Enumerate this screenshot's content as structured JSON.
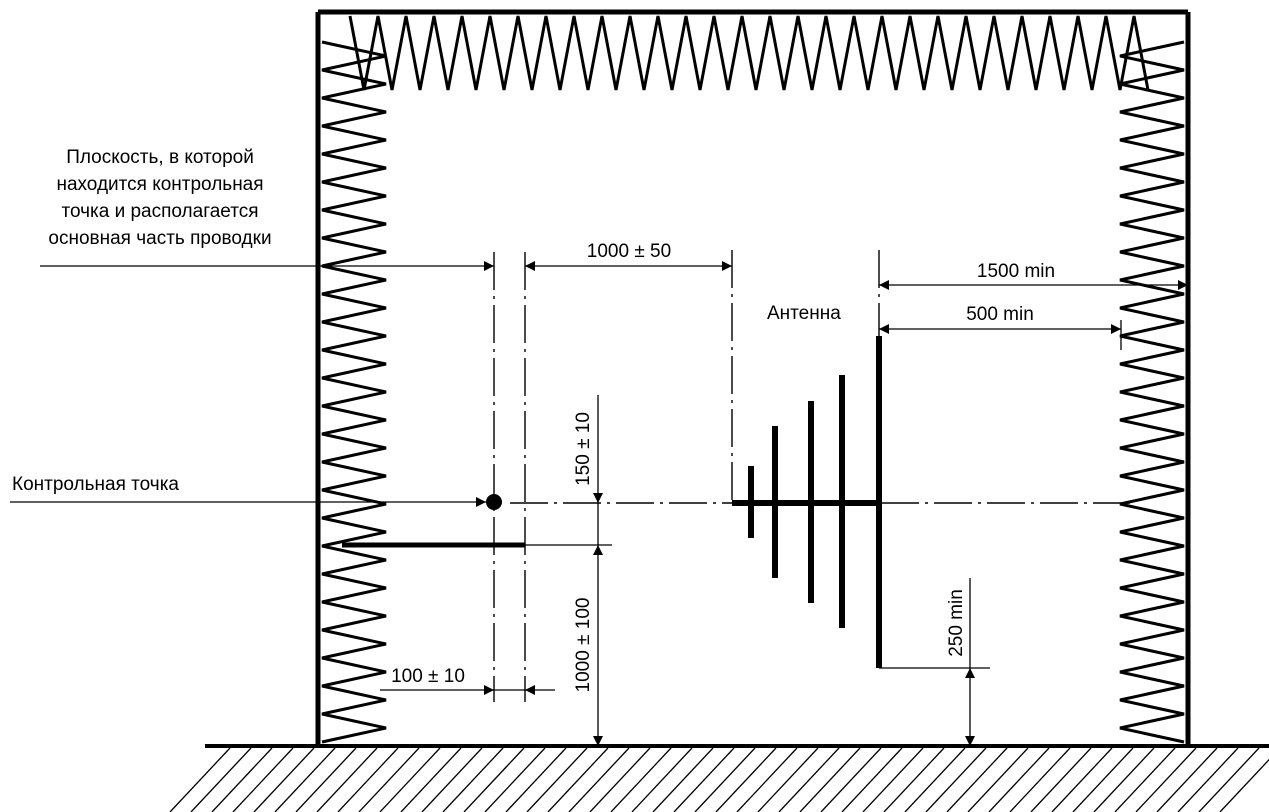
{
  "labels": {
    "plane_line1": "Плоскость, в которой",
    "plane_line2": "находится контрольная",
    "plane_line3": "точка и располагается",
    "plane_line4": "основная часть проводки",
    "reference_point": "Контрольная точка",
    "antenna": "Антенна"
  },
  "dimensions": {
    "d_1000_50": "1000 ± 50",
    "d_1500_min": "1500 min",
    "d_500_min": "500 min",
    "d_150_10": "150 ± 10",
    "d_1000_100": "1000 ± 100",
    "d_250_min": "250 min",
    "d_100_10": "100 ± 10"
  },
  "colors": {
    "ink": "#000000",
    "background": "#ffffff"
  }
}
